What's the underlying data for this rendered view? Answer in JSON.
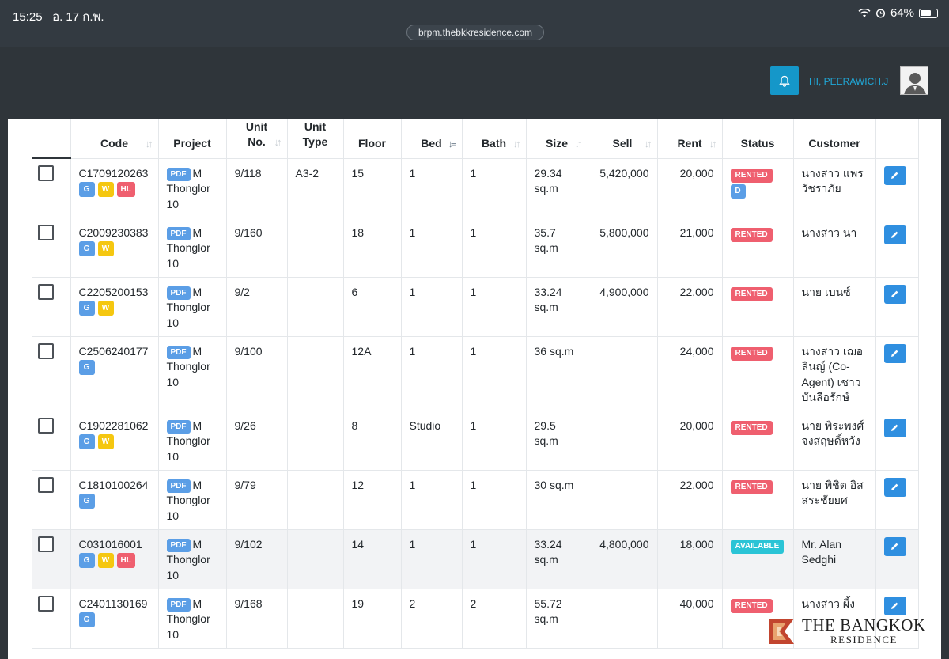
{
  "status_bar": {
    "time": "15:25",
    "date": "อ. 17 ก.พ.",
    "url": "brpm.thebkkresidence.com",
    "battery": "64%"
  },
  "header": {
    "greeting": "HI, PEERAWICH.J"
  },
  "table": {
    "columns": [
      "Code",
      "Project",
      "Unit No.",
      "Unit Type",
      "Floor",
      "Bed",
      "Bath",
      "Size",
      "Sell",
      "Rent",
      "Status",
      "Customer"
    ],
    "rows": [
      {
        "code": "C1709120263",
        "tags": [
          "G",
          "W",
          "HL"
        ],
        "pdf": "PDF",
        "project": "M Thonglor 10",
        "unit_no": "9/118",
        "unit_type": "A3-2",
        "floor": "15",
        "bed": "1",
        "bath": "1",
        "size": "29.34 sq.m",
        "sell": "5,420,000",
        "rent": "20,000",
        "status": "RENTED",
        "extra_badge": "D",
        "customer": "นางสาว แพร วัชราภัย"
      },
      {
        "code": "C2009230383",
        "tags": [
          "G",
          "W"
        ],
        "pdf": "PDF",
        "project": "M Thonglor 10",
        "unit_no": "9/160",
        "unit_type": "",
        "floor": "18",
        "bed": "1",
        "bath": "1",
        "size": "35.7 sq.m",
        "sell": "5,800,000",
        "rent": "21,000",
        "status": "RENTED",
        "extra_badge": "",
        "customer": "นางสาว นา"
      },
      {
        "code": "C2205200153",
        "tags": [
          "G",
          "W"
        ],
        "pdf": "PDF",
        "project": "M Thonglor 10",
        "unit_no": "9/2",
        "unit_type": "",
        "floor": "6",
        "bed": "1",
        "bath": "1",
        "size": "33.24 sq.m",
        "sell": "4,900,000",
        "rent": "22,000",
        "status": "RENTED",
        "extra_badge": "",
        "customer": "นาย เบนซ์"
      },
      {
        "code": "C2506240177",
        "tags": [
          "G"
        ],
        "pdf": "PDF",
        "project": "M Thonglor 10",
        "unit_no": "9/100",
        "unit_type": "",
        "floor": "12A",
        "bed": "1",
        "bath": "1",
        "size": "36 sq.m",
        "sell": "",
        "rent": "24,000",
        "status": "RENTED",
        "extra_badge": "",
        "customer": "นางสาว เฌอลินญ์ (Co-Agent) เชาวบันลือรักษ์"
      },
      {
        "code": "C1902281062",
        "tags": [
          "G",
          "W"
        ],
        "pdf": "PDF",
        "project": "M Thonglor 10",
        "unit_no": "9/26",
        "unit_type": "",
        "floor": "8",
        "bed": "Studio",
        "bath": "1",
        "size": "29.5 sq.m",
        "sell": "",
        "rent": "20,000",
        "status": "RENTED",
        "extra_badge": "",
        "customer": "นาย พิระพงศ์ จงสฤษดิ์หวัง"
      },
      {
        "code": "C1810100264",
        "tags": [
          "G"
        ],
        "pdf": "PDF",
        "project": "M Thonglor 10",
        "unit_no": "9/79",
        "unit_type": "",
        "floor": "12",
        "bed": "1",
        "bath": "1",
        "size": "30 sq.m",
        "sell": "",
        "rent": "22,000",
        "status": "RENTED",
        "extra_badge": "",
        "customer": "นาย พิชิต อิสสระชัยยศ"
      },
      {
        "code": "C031016001",
        "tags": [
          "G",
          "W",
          "HL"
        ],
        "pdf": "PDF",
        "project": "M Thonglor 10",
        "unit_no": "9/102",
        "unit_type": "",
        "floor": "14",
        "bed": "1",
        "bath": "1",
        "size": "33.24 sq.m",
        "sell": "4,800,000",
        "rent": "18,000",
        "status": "AVAILABLE",
        "extra_badge": "",
        "customer": "Mr. Alan Sedghi"
      },
      {
        "code": "C2401130169",
        "tags": [
          "G"
        ],
        "pdf": "PDF",
        "project": "M Thonglor 10",
        "unit_no": "9/168",
        "unit_type": "",
        "floor": "19",
        "bed": "2",
        "bath": "2",
        "size": "55.72 sq.m",
        "sell": "",
        "rent": "40,000",
        "status": "RENTED",
        "extra_badge": "",
        "customer": "นางสาว ผึ้ง"
      }
    ]
  },
  "logo": {
    "line1": "THE BANGKOK",
    "line2": "RESIDENCE"
  },
  "colors": {
    "header_bg": "#2f353a",
    "accent": "#20a8d8",
    "rented": "#ef5f6f",
    "available": "#2bc4d6",
    "tag_g": "#5b9ee6",
    "tag_w": "#f5c710",
    "tag_hl": "#ef5f6f",
    "edit": "#2f8fe0"
  },
  "icons": {
    "bell": "bell-icon",
    "avatar": "user-avatar-icon",
    "edit": "pencil-icon",
    "sort": "sort-arrows-icon",
    "wifi": "wifi-icon",
    "alarm": "alarm-icon",
    "battery": "battery-icon"
  }
}
